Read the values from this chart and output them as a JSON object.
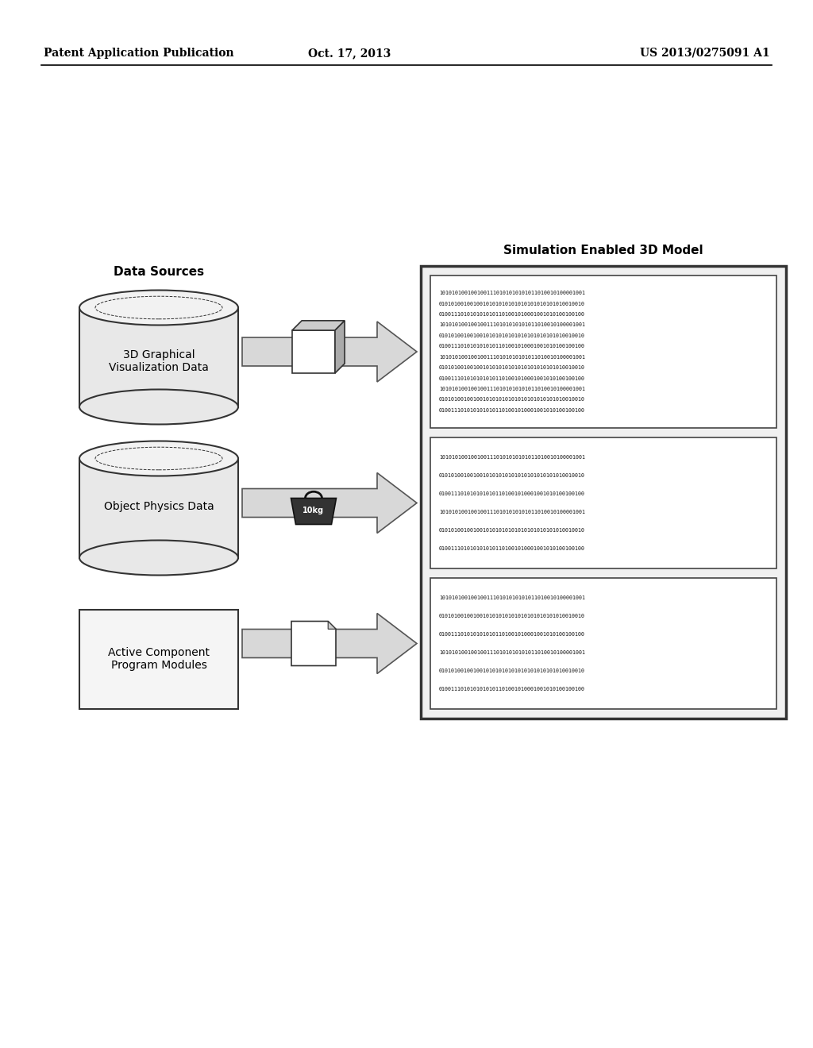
{
  "header_left": "Patent Application Publication",
  "header_center": "Oct. 17, 2013",
  "header_right": "US 2013/0275091 A1",
  "left_title": "Data Sources",
  "right_title": "Simulation Enabled 3D Model",
  "cylinder1_label": "3D Graphical\nVisualization Data",
  "cylinder2_label": "Object Physics Data",
  "rect_label": "Active Component\nProgram Modules",
  "background_color": "#ffffff",
  "text_color": "#000000",
  "binary_rows_12": [
    "1010101001001001110101010101011010010100001001",
    "0101010010010010101010101010101010101010010010",
    "0100111010101010101101001010001001010100100100",
    "1010101001001001110101010101011010010100001001",
    "0101010010010010101010101010101010101010010010",
    "0100111010101010101101001010001001010100100100",
    "1010101001001001110101010101011010010100001001",
    "0101010010010010101010101010101010101010010010",
    "0100111010101010101101001010001001010100100100",
    "1010101001001001110101010101011010010100001001",
    "0101010010010010101010101010101010101010010010",
    "0100111010101010101101001010001001010100100100"
  ],
  "binary_rows_6": [
    "1010101001001001110101010101011010010100001001",
    "0101010010010010101010101010101010101010010010",
    "0100111010101010101101001010001001010100100100",
    "1010101001001001110101010101011010010100001001",
    "0101010010010010101010101010101010101010010010",
    "0100111010101010101101001010001001010100100100"
  ]
}
